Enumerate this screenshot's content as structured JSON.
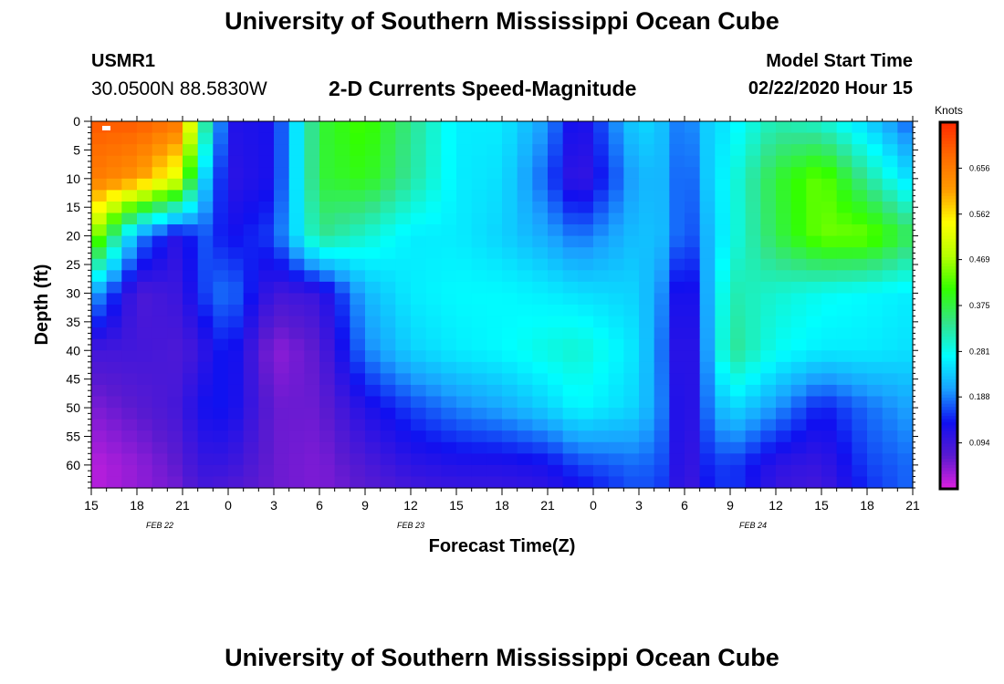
{
  "header": {
    "title": "University of Southern Mississippi Ocean Cube",
    "station": "USMR1",
    "coords": "30.0500N 88.5830W",
    "subtitle": "2-D Currents Speed-Magnitude",
    "model_start_label": "Model Start Time",
    "model_start_value": "02/22/2020 Hour 15"
  },
  "footer": {
    "title": "University of Southern Mississippi Ocean Cube"
  },
  "colors": {
    "scale": [
      "#e020e0",
      "#5a1ad0",
      "#1010f0",
      "#1aa0ff",
      "#00ffff",
      "#33e38a",
      "#33ff00",
      "#b5ff00",
      "#ffff00",
      "#ff9a00",
      "#ff6a00",
      "#ff2a00"
    ]
  },
  "chart_data": {
    "type": "heatmap",
    "title": "2-D Currents Speed-Magnitude",
    "xlabel": "Forecast Time(Z)",
    "ylabel": "Depth (ft)",
    "x_tick_labels": [
      "15",
      "18",
      "21",
      "0",
      "3",
      "6",
      "9",
      "12",
      "15",
      "18",
      "21",
      "0",
      "3",
      "6",
      "9",
      "12",
      "15",
      "18",
      "21"
    ],
    "x_hours_since_start": [
      0,
      3,
      6,
      9,
      12,
      15,
      18,
      21,
      24,
      27,
      30,
      33,
      36,
      39,
      42,
      45,
      48,
      51,
      54
    ],
    "date_labels": [
      {
        "label": "FEB  22",
        "hour": 4.5
      },
      {
        "label": "FEB  23",
        "hour": 21
      },
      {
        "label": "FEB  24",
        "hour": 43.5
      }
    ],
    "xlim": [
      0,
      54
    ],
    "y_ticks": [
      0,
      5,
      10,
      15,
      20,
      25,
      30,
      35,
      40,
      45,
      50,
      55,
      60
    ],
    "ylim": [
      0,
      64
    ],
    "colorbar": {
      "label": "Knots",
      "ticks": [
        0.094,
        0.188,
        0.281,
        0.375,
        0.469,
        0.562,
        0.656
      ],
      "range": [
        0,
        0.75
      ]
    },
    "depths": [
      0,
      10,
      20,
      30,
      40,
      50,
      60,
      64
    ],
    "times": [
      0,
      3,
      6,
      7,
      9,
      12,
      15,
      18,
      21,
      24,
      27,
      30,
      32,
      36,
      38,
      39,
      40,
      42,
      45,
      48,
      51,
      54
    ],
    "values": [
      [
        0.7,
        0.7,
        0.66,
        0.4,
        0.12,
        0.13,
        0.38,
        0.42,
        0.34,
        0.26,
        0.26,
        0.2,
        0.11,
        0.25,
        0.22,
        0.16,
        0.23,
        0.26,
        0.32,
        0.3,
        0.24,
        0.17
      ],
      [
        0.66,
        0.62,
        0.5,
        0.28,
        0.11,
        0.13,
        0.38,
        0.4,
        0.33,
        0.26,
        0.25,
        0.17,
        0.09,
        0.22,
        0.22,
        0.14,
        0.22,
        0.28,
        0.38,
        0.44,
        0.33,
        0.24
      ],
      [
        0.48,
        0.2,
        0.1,
        0.18,
        0.13,
        0.16,
        0.34,
        0.3,
        0.26,
        0.26,
        0.24,
        0.21,
        0.18,
        0.23,
        0.22,
        0.14,
        0.2,
        0.28,
        0.37,
        0.44,
        0.44,
        0.36
      ],
      [
        0.22,
        0.08,
        0.1,
        0.15,
        0.19,
        0.09,
        0.1,
        0.22,
        0.26,
        0.27,
        0.27,
        0.26,
        0.25,
        0.24,
        0.18,
        0.08,
        0.18,
        0.32,
        0.3,
        0.28,
        0.27,
        0.26
      ],
      [
        0.09,
        0.09,
        0.08,
        0.1,
        0.15,
        0.04,
        0.07,
        0.19,
        0.24,
        0.26,
        0.27,
        0.29,
        0.3,
        0.25,
        0.16,
        0.07,
        0.16,
        0.34,
        0.28,
        0.26,
        0.26,
        0.25
      ],
      [
        0.05,
        0.07,
        0.09,
        0.13,
        0.14,
        0.06,
        0.06,
        0.12,
        0.16,
        0.19,
        0.21,
        0.24,
        0.27,
        0.24,
        0.17,
        0.07,
        0.16,
        0.25,
        0.2,
        0.14,
        0.18,
        0.21
      ],
      [
        0.02,
        0.04,
        0.07,
        0.1,
        0.1,
        0.06,
        0.05,
        0.08,
        0.11,
        0.12,
        0.12,
        0.13,
        0.16,
        0.18,
        0.16,
        0.07,
        0.14,
        0.16,
        0.11,
        0.1,
        0.16,
        0.18
      ],
      [
        0.02,
        0.04,
        0.06,
        0.09,
        0.08,
        0.06,
        0.05,
        0.07,
        0.09,
        0.1,
        0.1,
        0.11,
        0.13,
        0.17,
        0.15,
        0.07,
        0.13,
        0.16,
        0.1,
        0.09,
        0.15,
        0.18
      ]
    ]
  }
}
